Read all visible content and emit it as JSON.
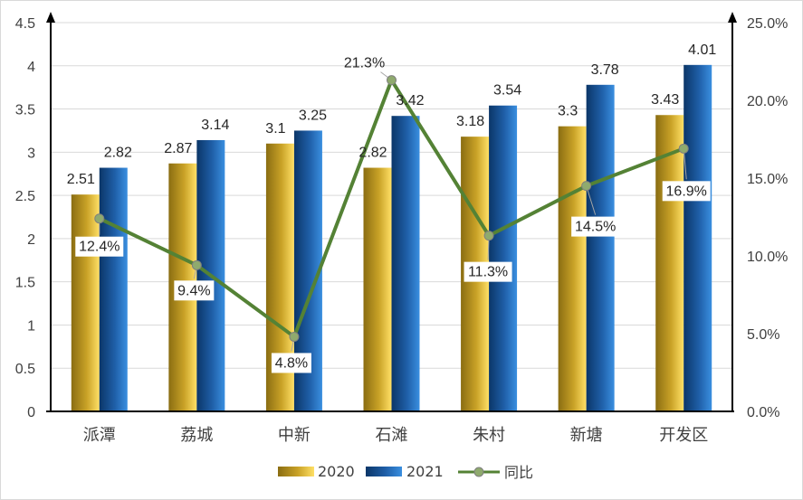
{
  "chart_data": {
    "type": "bar",
    "categories": [
      "派潭",
      "荔城",
      "中新",
      "石滩",
      "朱村",
      "新塘",
      "开发区"
    ],
    "series": [
      {
        "name": "2020",
        "type": "bar",
        "values": [
          2.51,
          2.87,
          3.1,
          2.82,
          3.18,
          3.3,
          3.43
        ],
        "labels": [
          "2.51",
          "2.87",
          "3.1",
          "2.82",
          "3.18",
          "3.3",
          "3.43"
        ]
      },
      {
        "name": "2021",
        "type": "bar",
        "values": [
          2.82,
          3.14,
          3.25,
          3.42,
          3.54,
          3.78,
          4.01
        ],
        "labels": [
          "2.82",
          "3.14",
          "3.25",
          "3.42",
          "3.54",
          "3.78",
          "4.01"
        ]
      },
      {
        "name": "同比",
        "type": "line",
        "axis": "right",
        "values": [
          12.4,
          9.4,
          4.8,
          21.3,
          11.3,
          14.5,
          16.9
        ],
        "labels": [
          "12.4%",
          "9.4%",
          "4.8%",
          "21.3%",
          "11.3%",
          "14.5%",
          "16.9%"
        ]
      }
    ],
    "ylim": [
      0,
      4.5
    ],
    "y_ticks": [
      "0",
      "0.5",
      "1",
      "1.5",
      "2",
      "2.5",
      "3",
      "3.5",
      "4",
      "4.5"
    ],
    "y2lim": [
      0,
      25
    ],
    "y2_ticks": [
      "0.0%",
      "5.0%",
      "10.0%",
      "15.0%",
      "20.0%",
      "25.0%"
    ],
    "grid": true,
    "legend": "bottom",
    "colors": {
      "bar2020": "#c9a227",
      "bar2021": "#1f5fa8",
      "line": "#548235",
      "marker": "#8faa6e"
    }
  }
}
